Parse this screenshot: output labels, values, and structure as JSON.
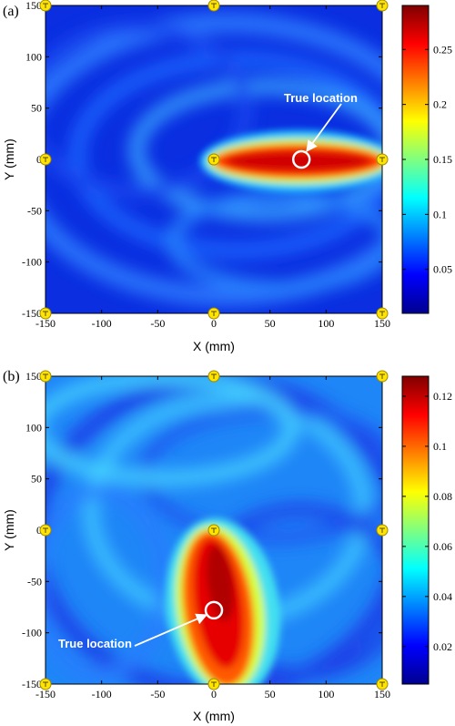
{
  "chart_data": [
    {
      "type": "heatmap",
      "panel_label": "(a)",
      "xlabel": "X (mm)",
      "ylabel": "Y (mm)",
      "xlim": [
        -150,
        150
      ],
      "ylim": [
        -150,
        150
      ],
      "xticks": [
        -150,
        -100,
        -50,
        0,
        50,
        100,
        150
      ],
      "yticks": [
        -150,
        -100,
        -50,
        0,
        50,
        100,
        150
      ],
      "colorbar": {
        "min": 0.01,
        "max": 0.29,
        "ticks": [
          0.05,
          0.1,
          0.15,
          0.2,
          0.25
        ]
      },
      "sensors": [
        [
          -150,
          150
        ],
        [
          0,
          150
        ],
        [
          150,
          150
        ],
        [
          -150,
          0
        ],
        [
          0,
          0
        ],
        [
          150,
          0
        ],
        [
          -150,
          -150
        ],
        [
          0,
          -150
        ],
        [
          150,
          -150
        ]
      ],
      "hotspot": {
        "x_range": [
          0,
          150
        ],
        "y": 0,
        "peak": 0.28
      },
      "true_location": {
        "x": 78,
        "y": 0
      },
      "annotation": "True location",
      "colormap": "jet"
    },
    {
      "type": "heatmap",
      "panel_label": "(b)",
      "xlabel": "X (mm)",
      "ylabel": "Y (mm)",
      "xlim": [
        -150,
        150
      ],
      "ylim": [
        -150,
        150
      ],
      "xticks": [
        -150,
        -100,
        -50,
        0,
        50,
        100,
        150
      ],
      "yticks": [
        -150,
        -100,
        -50,
        0,
        50,
        100,
        150
      ],
      "colorbar": {
        "min": 0.005,
        "max": 0.128,
        "ticks": [
          0.02,
          0.04,
          0.06,
          0.08,
          0.1,
          0.12
        ]
      },
      "sensors": [
        [
          -150,
          150
        ],
        [
          0,
          150
        ],
        [
          150,
          150
        ],
        [
          -150,
          0
        ],
        [
          0,
          0
        ],
        [
          150,
          0
        ],
        [
          -150,
          -150
        ],
        [
          0,
          -150
        ],
        [
          150,
          -150
        ]
      ],
      "hotspot": {
        "x": 0,
        "y_range": [
          -150,
          0
        ],
        "peak": 0.125
      },
      "true_location": {
        "x": 0,
        "y": -78
      },
      "annotation": "True location",
      "colormap": "jet"
    }
  ]
}
